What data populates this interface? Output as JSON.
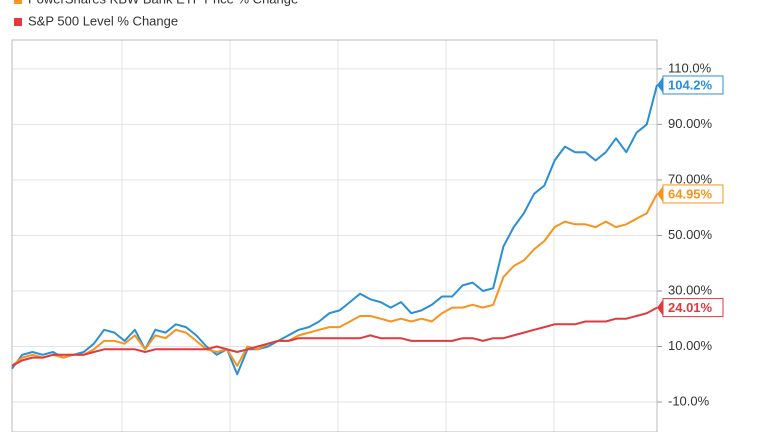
{
  "chart_data": {
    "type": "line",
    "series": [
      {
        "color": "#2a8fd6",
        "values": [
          2,
          7,
          8,
          7,
          8,
          6,
          7,
          8,
          11,
          16,
          15,
          12,
          16,
          9,
          16,
          15,
          18,
          17,
          14,
          10,
          7,
          9,
          0,
          9,
          9,
          10,
          12,
          14,
          16,
          17,
          19,
          22,
          23,
          26,
          29,
          27,
          26,
          24,
          26,
          22,
          23,
          25,
          28,
          28,
          32,
          33,
          30,
          31,
          46,
          53,
          58,
          65,
          68,
          77,
          82,
          80,
          80,
          77,
          80,
          85,
          80,
          87,
          90,
          104.2
        ],
        "value_labels": [
          null,
          null,
          null,
          null,
          null,
          null,
          null,
          null,
          null,
          null,
          null,
          null,
          null,
          null,
          null,
          null,
          null,
          null,
          null,
          null,
          null,
          null,
          null,
          null,
          null,
          null,
          null,
          null,
          null,
          null,
          null,
          null,
          null,
          null,
          null,
          null,
          null,
          null,
          null,
          null,
          null,
          null,
          null,
          null,
          null,
          null,
          null,
          null,
          null,
          null,
          null,
          null,
          null,
          null,
          null,
          null,
          null,
          null,
          null,
          null,
          null,
          null,
          null,
          "104.2%"
        ]
      },
      {
        "name": "PowerShares KBW Bank ETF Price % Change",
        "color": "#f7941d",
        "values": [
          3,
          6,
          7,
          6,
          7,
          6,
          7,
          7,
          9,
          12,
          12,
          11,
          14,
          9,
          14,
          13,
          16,
          15,
          12,
          9,
          8,
          9,
          3,
          10,
          9,
          11,
          12,
          12,
          14,
          15,
          16,
          17,
          17,
          19,
          21,
          21,
          20,
          19,
          20,
          19,
          20,
          19,
          22,
          24,
          24,
          25,
          24,
          25,
          35,
          39,
          41,
          45,
          48,
          53,
          55,
          54,
          54,
          53,
          55,
          53,
          54,
          56,
          58,
          64.95
        ],
        "value_labels": [
          null,
          null,
          null,
          null,
          null,
          null,
          null,
          null,
          null,
          null,
          null,
          null,
          null,
          null,
          null,
          null,
          null,
          null,
          null,
          null,
          null,
          null,
          null,
          null,
          null,
          null,
          null,
          null,
          null,
          null,
          null,
          null,
          null,
          null,
          null,
          null,
          null,
          null,
          null,
          null,
          null,
          null,
          null,
          null,
          null,
          null,
          null,
          null,
          null,
          null,
          null,
          null,
          null,
          null,
          null,
          null,
          null,
          null,
          null,
          null,
          null,
          null,
          null,
          "64.95%"
        ]
      },
      {
        "name": "S&P 500 Level % Change",
        "color": "#e03a3e",
        "values": [
          3,
          5,
          6,
          6,
          7,
          7,
          7,
          7,
          8,
          9,
          9,
          9,
          9,
          8,
          9,
          9,
          9,
          9,
          9,
          9,
          10,
          9,
          8,
          9,
          10,
          11,
          12,
          12,
          13,
          13,
          13,
          13,
          13,
          13,
          13,
          14,
          13,
          13,
          13,
          12,
          12,
          12,
          12,
          12,
          13,
          13,
          12,
          13,
          13,
          14,
          15,
          16,
          17,
          18,
          18,
          18,
          19,
          19,
          19,
          20,
          20,
          21,
          22,
          24.01
        ],
        "value_labels": [
          null,
          null,
          null,
          null,
          null,
          null,
          null,
          null,
          null,
          null,
          null,
          null,
          null,
          null,
          null,
          null,
          null,
          null,
          null,
          null,
          null,
          null,
          null,
          null,
          null,
          null,
          null,
          null,
          null,
          null,
          null,
          null,
          null,
          null,
          null,
          null,
          null,
          null,
          null,
          null,
          null,
          null,
          null,
          null,
          null,
          null,
          null,
          null,
          null,
          null,
          null,
          null,
          null,
          null,
          null,
          null,
          null,
          null,
          null,
          null,
          null,
          null,
          null,
          "24.01%"
        ]
      }
    ],
    "ylim": [
      -20.8,
      120.4
    ],
    "yticks": [
      {
        "value": 110,
        "label": "110.0%"
      },
      {
        "value": 90,
        "label": "90.00%"
      },
      {
        "value": 70,
        "label": "70.00%"
      },
      {
        "value": 50,
        "label": "50.00%"
      },
      {
        "value": 30,
        "label": "30.00%"
      },
      {
        "value": 10,
        "label": "10.00%"
      },
      {
        "value": -10,
        "label": "-10.0%"
      }
    ],
    "grid": true
  }
}
